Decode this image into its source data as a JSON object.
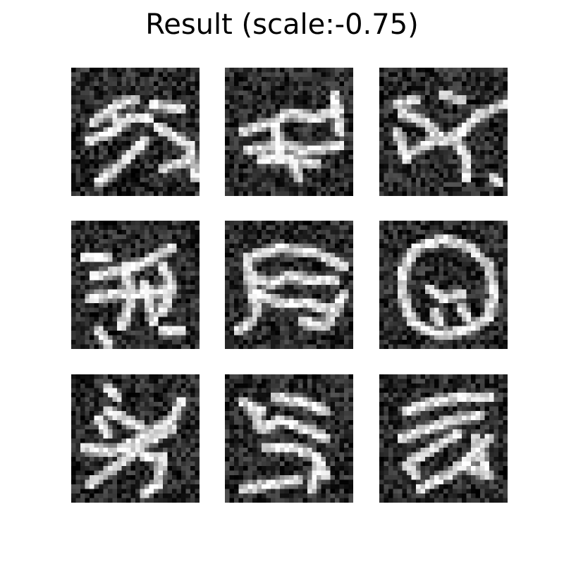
{
  "figure": {
    "title": "Result (scale:-0.75)"
  },
  "grid": {
    "rows": 3,
    "cols": 3,
    "colormap": "gray",
    "tiles": [
      {
        "id": "r1c1"
      },
      {
        "id": "r1c2"
      },
      {
        "id": "r1c3"
      },
      {
        "id": "r2c1"
      },
      {
        "id": "r2c2"
      },
      {
        "id": "r2c3"
      },
      {
        "id": "r3c1"
      },
      {
        "id": "r3c2"
      },
      {
        "id": "r3c3"
      }
    ]
  }
}
